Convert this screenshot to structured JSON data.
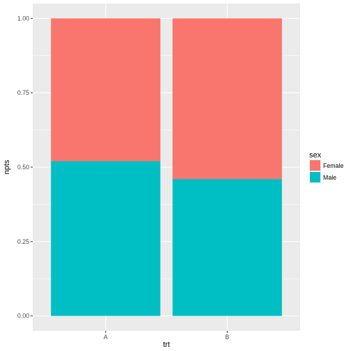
{
  "chart_data": {
    "type": "bar",
    "stacked": true,
    "position": "fill",
    "categories": [
      "A",
      "B"
    ],
    "series": [
      {
        "name": "Female",
        "color": "#F8766D",
        "values": [
          0.48,
          0.54
        ]
      },
      {
        "name": "Male",
        "color": "#00BFC4",
        "values": [
          0.52,
          0.46
        ]
      }
    ],
    "xlabel": "trt",
    "ylabel": "npts",
    "ylim": [
      0,
      1
    ],
    "yticks": [
      "0.00",
      "0.25",
      "0.50",
      "0.75",
      "1.00"
    ],
    "ytick_values": [
      0,
      0.25,
      0.5,
      0.75,
      1.0
    ],
    "legend": {
      "title": "sex",
      "placement": "right"
    },
    "panel_background": "#EBEBEB",
    "grid": true
  }
}
